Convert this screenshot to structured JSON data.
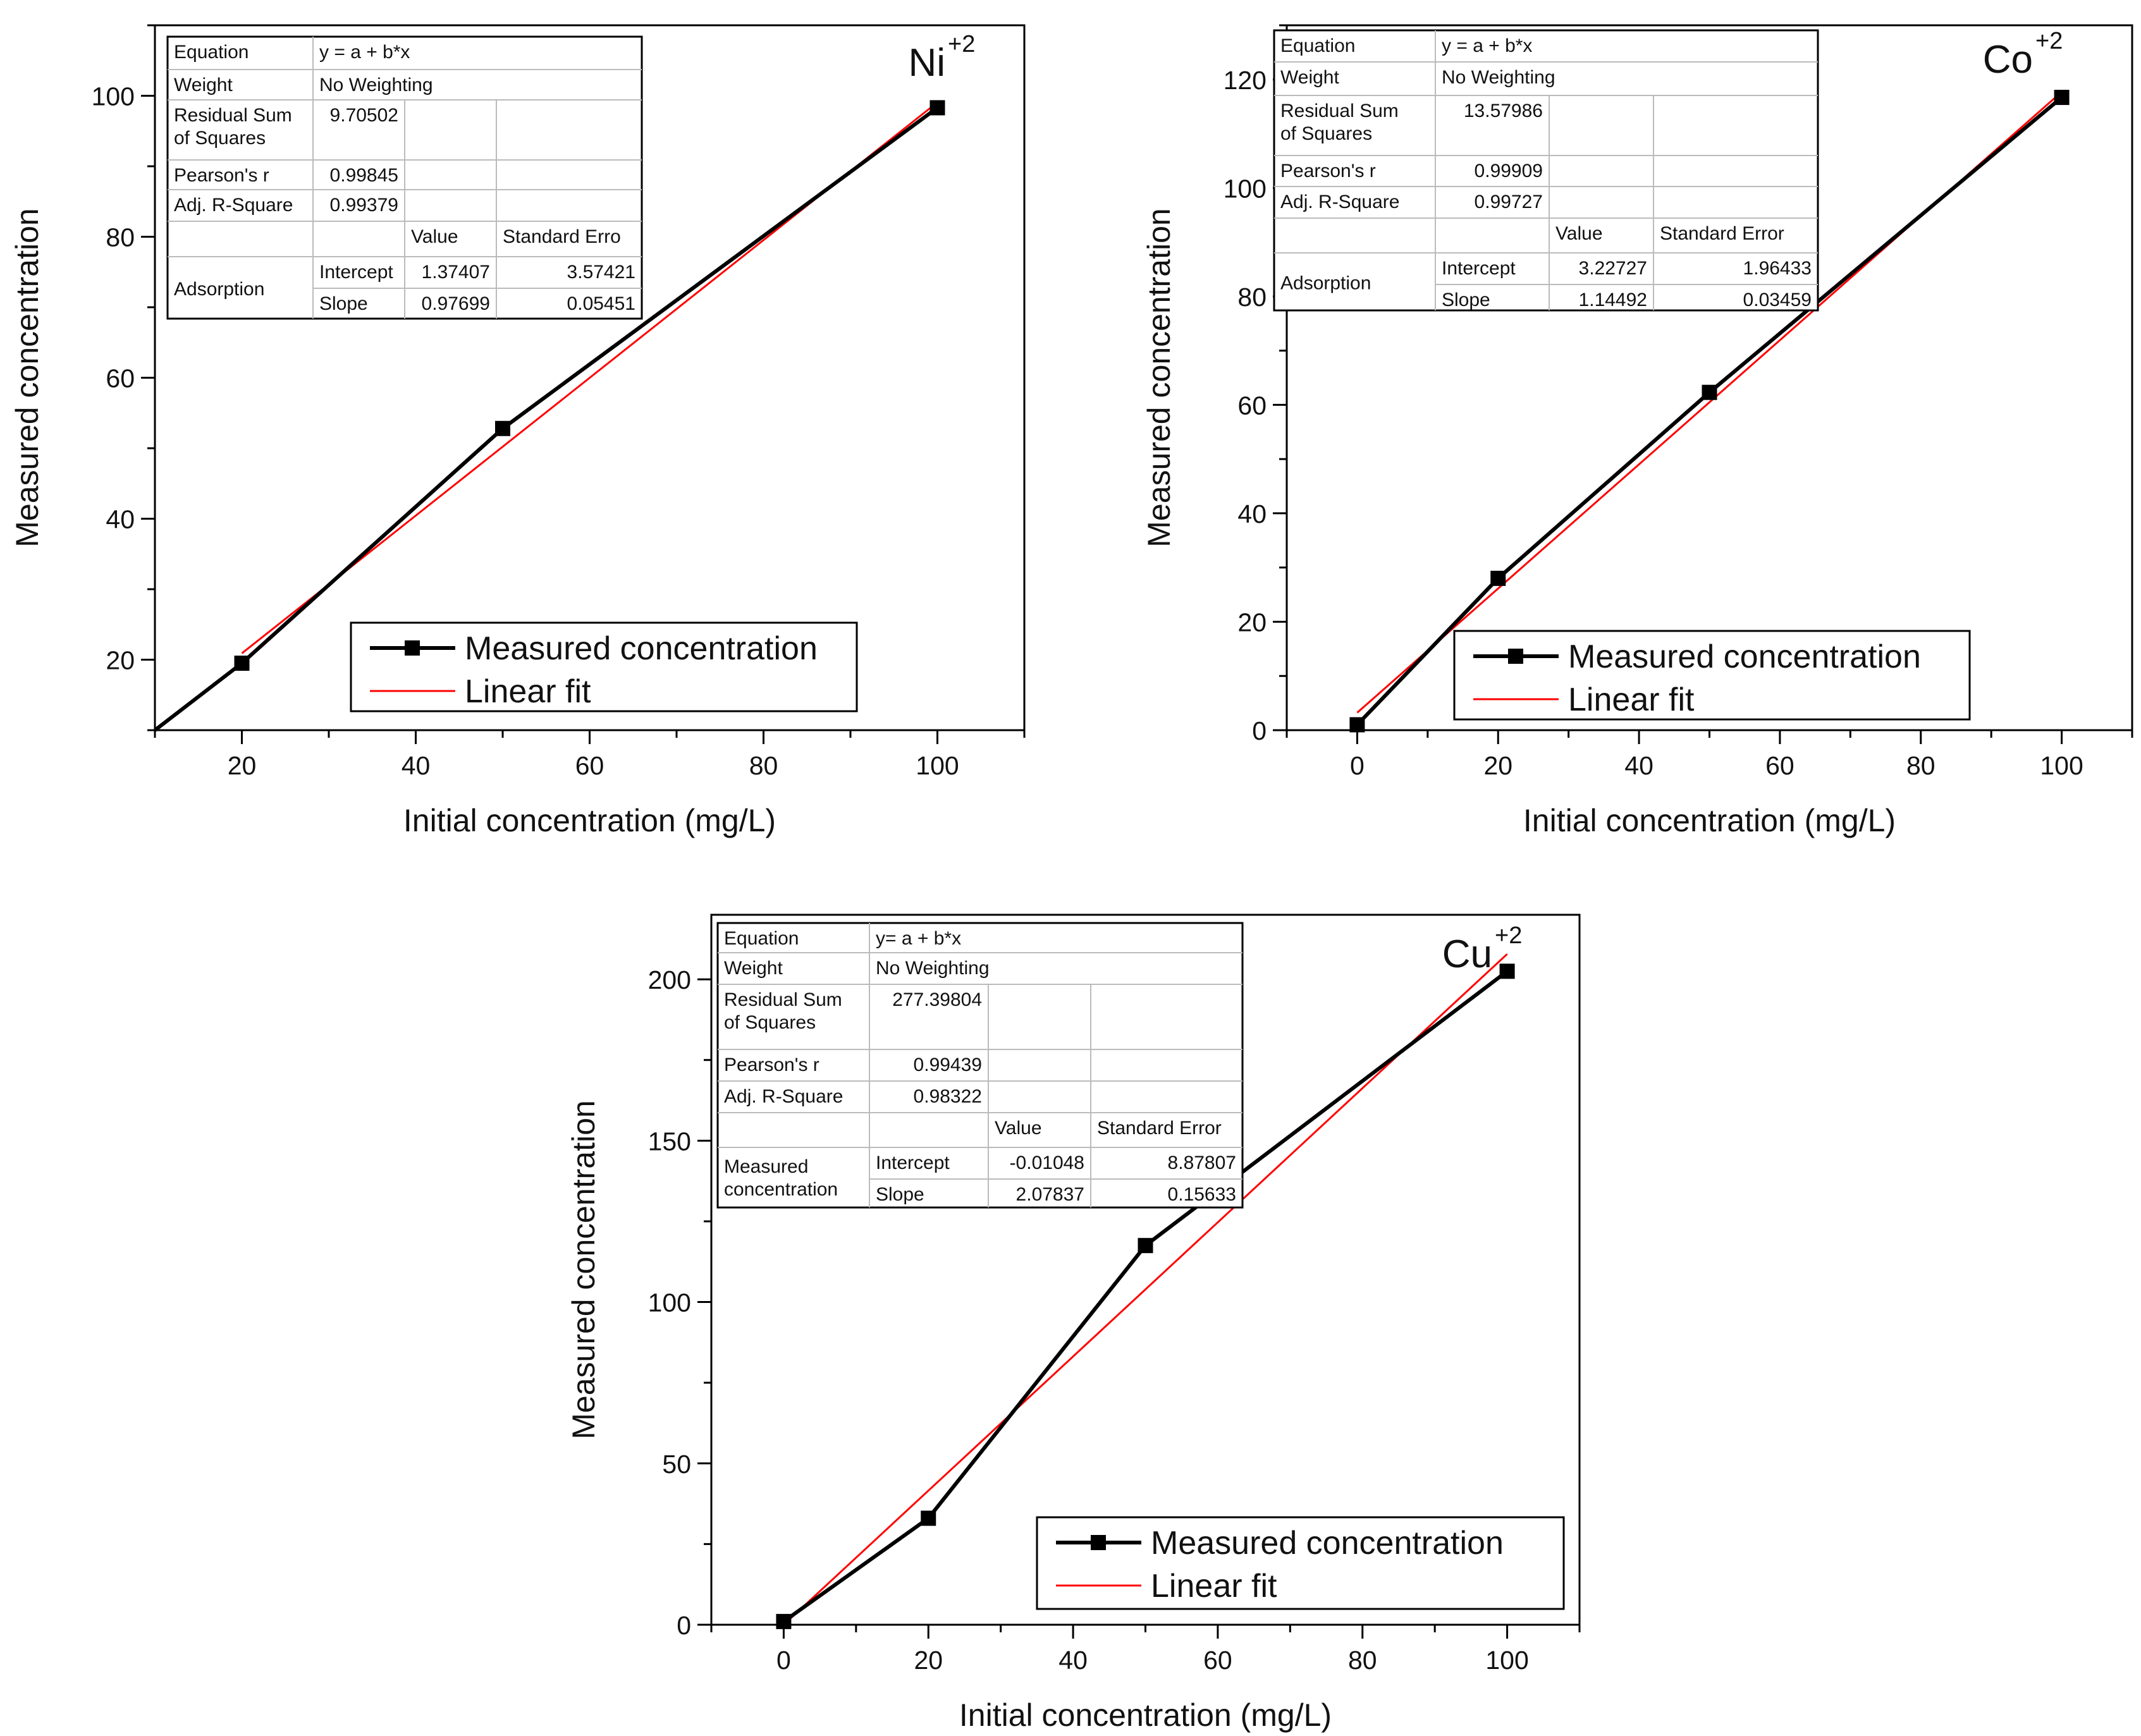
{
  "chart_data": [
    {
      "type": "line",
      "ion": "Ni",
      "ion_charge": "+2",
      "xlabel": "Initial concentration (mg/L)",
      "ylabel": "Measured concentration",
      "xlim": [
        10,
        110
      ],
      "ylim": [
        10,
        110
      ],
      "xticks": [
        20,
        40,
        60,
        80,
        100
      ],
      "yticks": [
        20,
        40,
        60,
        80,
        100
      ],
      "series": [
        {
          "name": "Measured concentration",
          "x": [
            10,
            20,
            50,
            100
          ],
          "values": [
            10,
            19.5,
            52.8,
            98.3
          ],
          "color": "#000000"
        },
        {
          "name": "Linear fit",
          "x": [
            20,
            100
          ],
          "values": [
            20.9,
            99.07
          ],
          "color": "#ff0000"
        }
      ],
      "legend": {
        "position": "bottom-right",
        "entries": [
          "Measured concentration",
          "Linear fit"
        ]
      },
      "fit_table": {
        "equation_label": "Equation",
        "equation": "y = a + b*x",
        "weight_label": "Weight",
        "weight": "No Weighting",
        "rss_label": "Residual Sum of Squares",
        "rss": "9.70502",
        "pearson_label": "Pearson's r",
        "pearson": "0.99845",
        "adjr2_label": "Adj. R-Square",
        "adjr2": "0.99379",
        "value_header": "Value",
        "stderr_header": "Standard Erro",
        "group_label": "Adsorption",
        "intercept_label": "Intercept",
        "intercept": "1.37407",
        "intercept_err": "3.57421",
        "slope_label": "Slope",
        "slope": "0.97699",
        "slope_err": "0.05451"
      }
    },
    {
      "type": "line",
      "ion": "Co",
      "ion_charge": "+2",
      "xlabel": "Initial concentration (mg/L)",
      "ylabel": "Measured concentration",
      "xlim": [
        -10,
        110
      ],
      "ylim": [
        0,
        130
      ],
      "xticks": [
        0,
        20,
        40,
        60,
        80,
        100
      ],
      "yticks": [
        0,
        20,
        40,
        60,
        80,
        100,
        120
      ],
      "series": [
        {
          "name": "Measured concentration",
          "x": [
            0,
            20,
            50,
            100
          ],
          "values": [
            1,
            28,
            62.3,
            116.7
          ],
          "color": "#000000"
        },
        {
          "name": "Linear fit",
          "x": [
            0,
            100
          ],
          "values": [
            3.23,
            117.72
          ],
          "color": "#ff0000"
        }
      ],
      "legend": {
        "position": "bottom-right",
        "entries": [
          "Measured concentration",
          "Linear fit"
        ]
      },
      "fit_table": {
        "equation_label": "Equation",
        "equation": "y = a + b*x",
        "weight_label": "Weight",
        "weight": "No Weighting",
        "rss_label": "Residual Sum of Squares",
        "rss": "13.57986",
        "pearson_label": "Pearson's r",
        "pearson": "0.99909",
        "adjr2_label": "Adj. R-Square",
        "adjr2": "0.99727",
        "value_header": "Value",
        "stderr_header": "Standard Error",
        "group_label": "Adsorption",
        "intercept_label": "Intercept",
        "intercept": "3.22727",
        "intercept_err": "1.96433",
        "slope_label": "Slope",
        "slope": "1.14492",
        "slope_err": "0.03459"
      }
    },
    {
      "type": "line",
      "ion": "Cu",
      "ion_charge": "+2",
      "xlabel": "Initial concentration (mg/L)",
      "ylabel": "Measured concentration",
      "xlim": [
        -10,
        110
      ],
      "ylim": [
        0,
        220
      ],
      "xticks": [
        0,
        20,
        40,
        60,
        80,
        100
      ],
      "yticks": [
        0,
        50,
        100,
        150,
        200
      ],
      "series": [
        {
          "name": "Measured concentration",
          "x": [
            0,
            20,
            50,
            100
          ],
          "values": [
            1,
            33,
            117.5,
            202.5
          ],
          "color": "#000000"
        },
        {
          "name": "Linear fit",
          "x": [
            0,
            100
          ],
          "values": [
            -0.01,
            207.83
          ],
          "color": "#ff0000"
        }
      ],
      "legend": {
        "position": "bottom-right",
        "entries": [
          "Measured concentration",
          "Linear fit"
        ]
      },
      "fit_table": {
        "equation_label": "Equation",
        "equation": "y= a + b*x",
        "weight_label": "Weight",
        "weight": "No Weighting",
        "rss_label": "Residual Sum of Squares",
        "rss": "277.39804",
        "pearson_label": "Pearson's r",
        "pearson": "0.99439",
        "adjr2_label": "Adj. R-Square",
        "adjr2": "0.98322",
        "value_header": "Value",
        "stderr_header": "Standard Error",
        "group_label": "Measured concentration",
        "intercept_label": "Intercept",
        "intercept": "-0.01048",
        "intercept_err": "8.87807",
        "slope_label": "Slope",
        "slope": "2.07837",
        "slope_err": "0.15633"
      }
    }
  ]
}
